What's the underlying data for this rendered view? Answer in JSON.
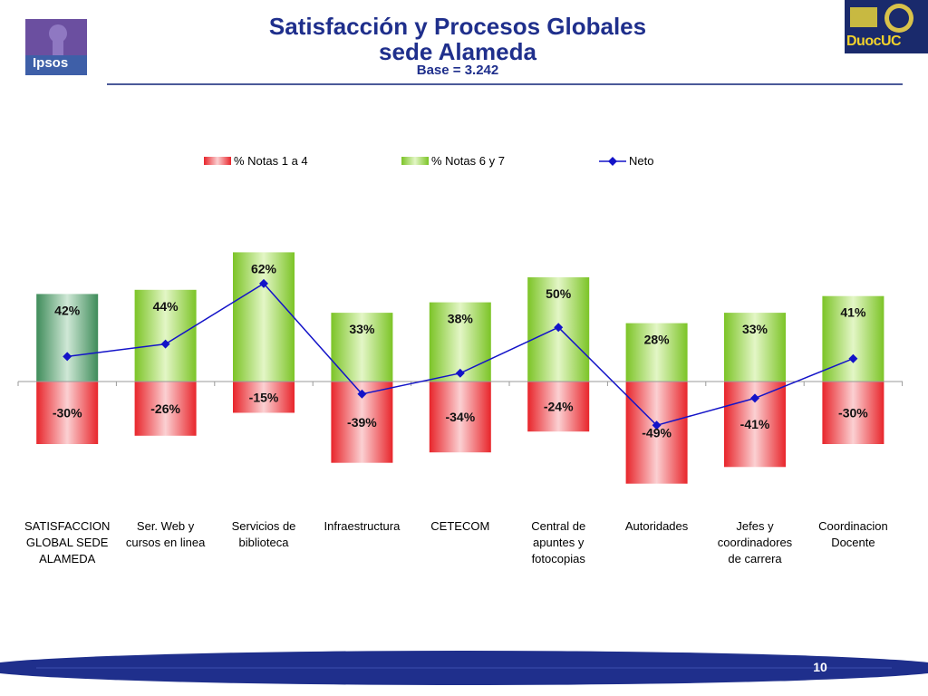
{
  "header": {
    "title_line1": "Satisfacción y Procesos Globales",
    "title_line2": "sede Alameda",
    "base": "Base = 3.242"
  },
  "logos": {
    "left": {
      "icon": "ipsos-logo",
      "text": "Ipsos"
    },
    "right": {
      "icon": "duoc-uc-logo",
      "text": "DuocUC"
    }
  },
  "colors": {
    "title": "#1f2f8c",
    "neg_bar": "#e8252b",
    "pos_bar": "#7cc427",
    "highlight_bar": "#3f8c5a",
    "neto_line": "#1313c8",
    "footer": "#1f2f8c"
  },
  "chart_data": {
    "type": "bar",
    "categories": [
      [
        "SATISFACCION",
        "GLOBAL SEDE",
        "ALAMEDA"
      ],
      [
        "Ser. Web y",
        "cursos en linea"
      ],
      [
        "Servicios de",
        "biblioteca"
      ],
      [
        "Infraestructura"
      ],
      [
        "CETECOM"
      ],
      [
        "Central de",
        "apuntes y",
        "fotocopias"
      ],
      [
        "Autoridades"
      ],
      [
        "Jefes y",
        "coordinadores",
        "de carrera"
      ],
      [
        "Coordinacion",
        "Docente"
      ]
    ],
    "series": [
      {
        "name": "% Notas 1 a 4",
        "type": "bar",
        "values": [
          -30,
          -26,
          -15,
          -39,
          -34,
          -24,
          -49,
          -41,
          -30
        ],
        "labels": [
          "-30%",
          "-26%",
          "-15%",
          "-39%",
          "-34%",
          "-24%",
          "-49%",
          "-41%",
          "-30%"
        ]
      },
      {
        "name": "% Notas 6 y 7",
        "type": "bar",
        "values": [
          42,
          44,
          62,
          33,
          38,
          50,
          28,
          33,
          41
        ],
        "labels": [
          "42%",
          "44%",
          "62%",
          "33%",
          "38%",
          "50%",
          "28%",
          "33%",
          "41%"
        ]
      },
      {
        "name": "Neto",
        "type": "line",
        "values": [
          12,
          18,
          47,
          -6,
          4,
          26,
          -21,
          -8,
          11
        ]
      }
    ],
    "stacked": true,
    "ylim": [
      -55,
      65
    ],
    "legend": "top",
    "grid": false
  },
  "footer": {
    "page": "10"
  }
}
